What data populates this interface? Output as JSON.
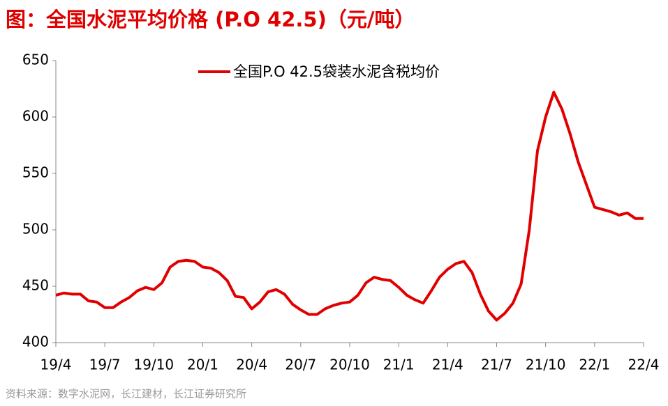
{
  "chart_data": {
    "type": "line",
    "title": "图：全国水泥平均价格 (P.O 42.5)（元/吨）",
    "source": "资料来源：数字水泥网，长江建材，长江证券研究所",
    "categories": [
      "19/4",
      null,
      null,
      null,
      null,
      null,
      "19/7",
      null,
      null,
      null,
      null,
      null,
      "19/10",
      null,
      null,
      null,
      null,
      null,
      "20/1",
      null,
      null,
      null,
      null,
      null,
      "20/4",
      null,
      null,
      null,
      null,
      null,
      "20/7",
      null,
      null,
      null,
      null,
      null,
      "20/10",
      null,
      null,
      null,
      null,
      null,
      "21/1",
      null,
      null,
      null,
      null,
      null,
      "21/4",
      null,
      null,
      null,
      null,
      null,
      "21/7",
      null,
      null,
      null,
      null,
      null,
      "21/10",
      null,
      null,
      null,
      null,
      null,
      "22/1",
      null,
      null,
      null,
      null,
      null,
      "22/4"
    ],
    "series": [
      {
        "name": "全国P.O 42.5袋装水泥含税均价",
        "color": "#e00000",
        "values": [
          442,
          444,
          443,
          443,
          437,
          436,
          431,
          431,
          436,
          440,
          446,
          449,
          447,
          453,
          467,
          472,
          473,
          472,
          467,
          466,
          462,
          455,
          441,
          440,
          430,
          436,
          445,
          447,
          443,
          434,
          429,
          425,
          425,
          430,
          433,
          435,
          436,
          442,
          453,
          458,
          456,
          455,
          449,
          442,
          438,
          435,
          446,
          458,
          465,
          470,
          472,
          462,
          443,
          428,
          420,
          426,
          435,
          452,
          500,
          570,
          600,
          622,
          607,
          585,
          560,
          540,
          520,
          518,
          516,
          513,
          515,
          510,
          510
        ]
      }
    ],
    "ylim": [
      400,
      650
    ],
    "yticks": [
      400,
      450,
      500,
      550,
      600,
      650
    ],
    "legend": "top"
  }
}
